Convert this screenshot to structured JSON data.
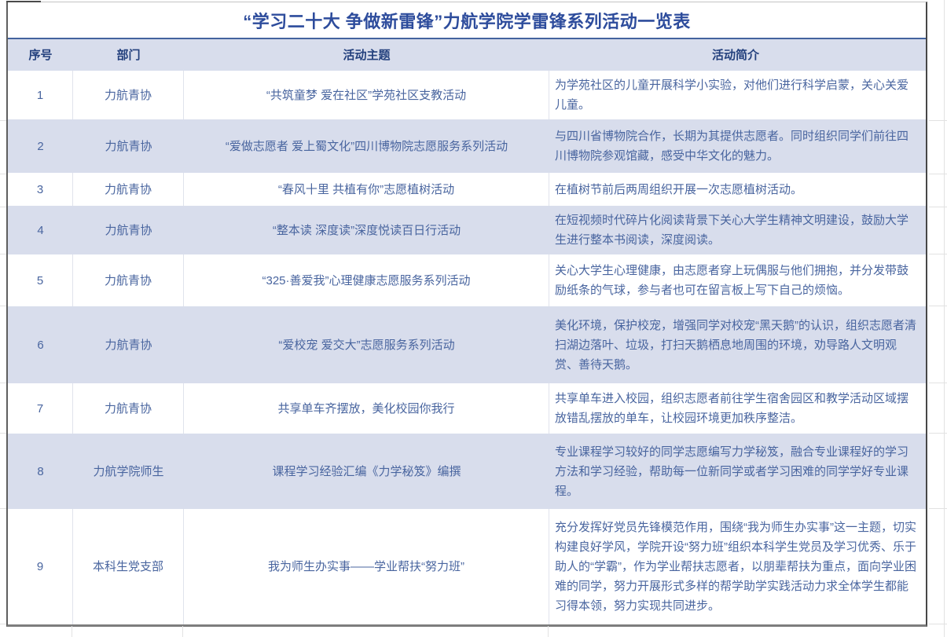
{
  "table": {
    "title": "“学习二十大 争做新雷锋”力航学院学雷锋系列活动一览表",
    "columns": [
      "序号",
      "部门",
      "活动主题",
      "活动简介"
    ],
    "rows": [
      {
        "num": "1",
        "dept": "力航青协",
        "theme": "“共筑童梦 爱在社区”学苑社区支教活动",
        "desc": "为学苑社区的儿童开展科学小实验，对他们进行科学启蒙，关心关爱儿童。"
      },
      {
        "num": "2",
        "dept": "力航青协",
        "theme": "“爱做志愿者 爱上蜀文化”四川博物院志愿服务系列活动",
        "desc": "与四川省博物院合作，长期为其提供志愿者。同时组织同学们前往四川博物院参观馆藏，感受中华文化的魅力。"
      },
      {
        "num": "3",
        "dept": "力航青协",
        "theme": "“春风十里 共植有你”志愿植树活动",
        "desc": "在植树节前后两周组织开展一次志愿植树活动。"
      },
      {
        "num": "4",
        "dept": "力航青协",
        "theme": "“整本读 深度读”深度悦读百日行活动",
        "desc": "在短视频时代碎片化阅读背景下关心大学生精神文明建设，鼓励大学生进行整本书阅读，深度阅读。"
      },
      {
        "num": "5",
        "dept": "力航青协",
        "theme": "“325·善爱我”心理健康志愿服务系列活动",
        "desc": "关心大学生心理健康，由志愿者穿上玩偶服与他们拥抱，并分发带鼓励纸条的气球，参与者也可在留言板上写下自己的烦恼。"
      },
      {
        "num": "6",
        "dept": "力航青协",
        "theme": "“爱校宠 爱交大”志愿服务系列活动",
        "desc": "美化环境，保护校宠，增强同学对校宠“黑天鹅”的认识，组织志愿者清扫湖边落叶、垃圾，打扫天鹅栖息地周围的环境，劝导路人文明观赏、善待天鹅。"
      },
      {
        "num": "7",
        "dept": "力航青协",
        "theme": "共享单车齐摆放，美化校园你我行",
        "desc": "共享单车进入校园，组织志愿者前往学生宿舍园区和教学活动区域摆放错乱摆放的单车，让校园环境更加秩序整洁。"
      },
      {
        "num": "8",
        "dept": "力航学院师生",
        "theme": "课程学习经验汇编《力学秘笈》编撰",
        "desc": "专业课程学习较好的同学志愿编写力学秘笈，融合专业课程好的学习方法和学习经验，帮助每一位新同学或者学习困难的同学学好专业课程。"
      },
      {
        "num": "9",
        "dept": "本科生党支部",
        "theme": "我为师生办实事——学业帮扶“努力班”",
        "desc": "充分发挥好党员先锋模范作用，围绕“我为师生办实事”这一主题，切实构建良好学风，学院开设“努力班”组织本科学生党员及学习优秀、乐于助人的“学霸”，作为学业帮扶志愿者，以朋辈帮扶为重点，面向学业困难的同学，努力开展形式多样的帮学助学实践活动力求全体学生都能习得本领，努力实现共同进步。"
      }
    ],
    "colors": {
      "title_text": "#2d4c9c",
      "header_text": "#23407d",
      "body_text": "#49659f",
      "band_background": "#d8ddec",
      "header_top_line": "#44639e"
    }
  }
}
